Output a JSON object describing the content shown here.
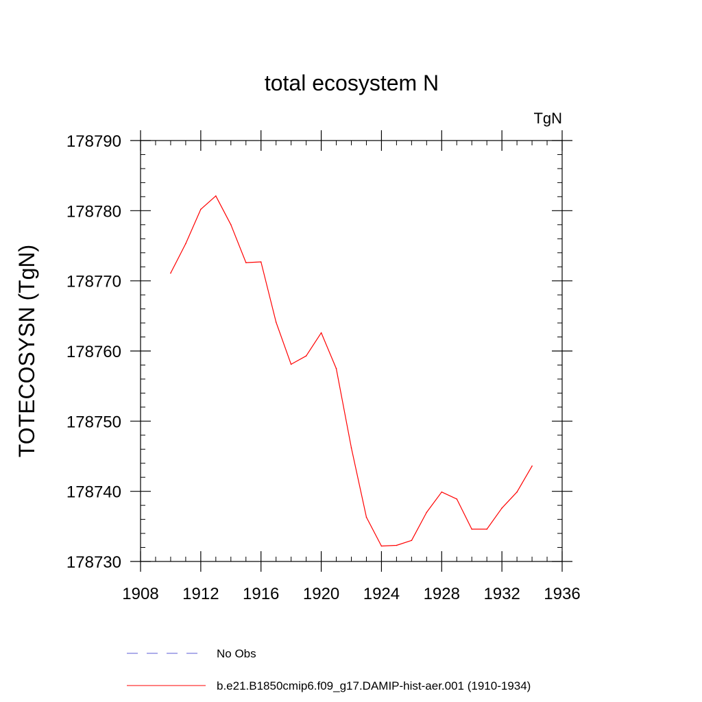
{
  "chart_data": {
    "type": "line",
    "title": "total ecosystem N",
    "units_label": "TgN",
    "xlabel": "",
    "ylabel": "TOTECOSYSN  (TgN)",
    "xlim": [
      1908,
      1936
    ],
    "ylim": [
      178730,
      178790
    ],
    "xticks": [
      1908,
      1912,
      1916,
      1920,
      1924,
      1928,
      1932,
      1936
    ],
    "yticks": [
      178730,
      178740,
      178750,
      178760,
      178770,
      178780,
      178790
    ],
    "x_minor_step": 1,
    "y_minor_step": 2,
    "grid": false,
    "legend_position": "bottom",
    "legend": [
      {
        "label": "No Obs",
        "color": "#5b5bd6",
        "style": "dashed"
      },
      {
        "label": "b.e21.B1850cmip6.f09_g17.DAMIP-hist-aer.001 (1910-1934)",
        "color": "#ff0000",
        "style": "solid"
      }
    ],
    "series": [
      {
        "name": "b.e21.B1850cmip6.f09_g17.DAMIP-hist-aer.001 (1910-1934)",
        "color": "#ff0000",
        "x": [
          1910,
          1911,
          1912,
          1913,
          1914,
          1915,
          1916,
          1917,
          1918,
          1919,
          1920,
          1921,
          1922,
          1923,
          1924,
          1925,
          1926,
          1927,
          1928,
          1929,
          1930,
          1931,
          1932,
          1933,
          1934
        ],
        "y": [
          178771.1,
          178775.3,
          178780.2,
          178782.1,
          178778.0,
          178772.6,
          178772.7,
          178764.1,
          178758.1,
          178759.3,
          178762.6,
          178757.5,
          178746.2,
          178736.3,
          178732.2,
          178732.3,
          178733.0,
          178737.0,
          178739.9,
          178738.9,
          178734.6,
          178734.6,
          178737.6,
          178739.9,
          178743.6
        ]
      }
    ]
  }
}
